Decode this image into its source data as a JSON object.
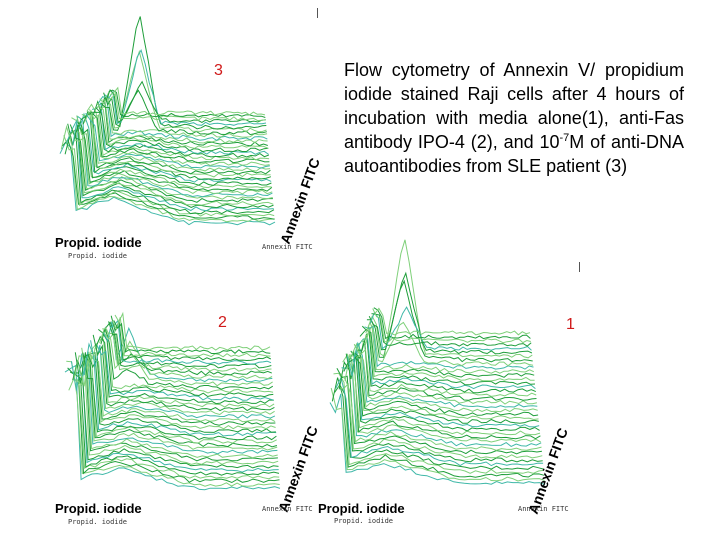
{
  "plots": [
    {
      "number": "3",
      "annex_label": "Annexin FITC",
      "pi_label": "Propid. iodide",
      "small_x": "Propid. iodide",
      "small_y": "Annexin FITC",
      "peak": 0.95
    },
    {
      "number": "2",
      "annex_label": "Annexin FITC",
      "pi_label": "Propid. iodide",
      "small_x": "Propid. iodide",
      "small_y": "Annexin FITC",
      "peak": 0.8
    },
    {
      "number": "1",
      "annex_label": "Annexin FITC",
      "pi_label": "Propid. iodide",
      "small_x": "Propid. iodide",
      "small_y": "Annexin FITC",
      "peak": 0.85
    }
  ],
  "caption": {
    "text_before": "Flow cytometry of Annexin V/ propidium iodide stained Raji cells after 4 hours of incubation with media alone(1), anti-Fas antibody IPO-4 (2), and 10",
    "superscript": "-7",
    "text_after": "M of anti-DNA autoantibodies from SLE patient (3)"
  },
  "colors": {
    "trace_dark": "#1e9e3a",
    "trace_light": "#7fd07a",
    "trace_cyan": "#3fb8a8",
    "label_red": "#d01a1a"
  }
}
